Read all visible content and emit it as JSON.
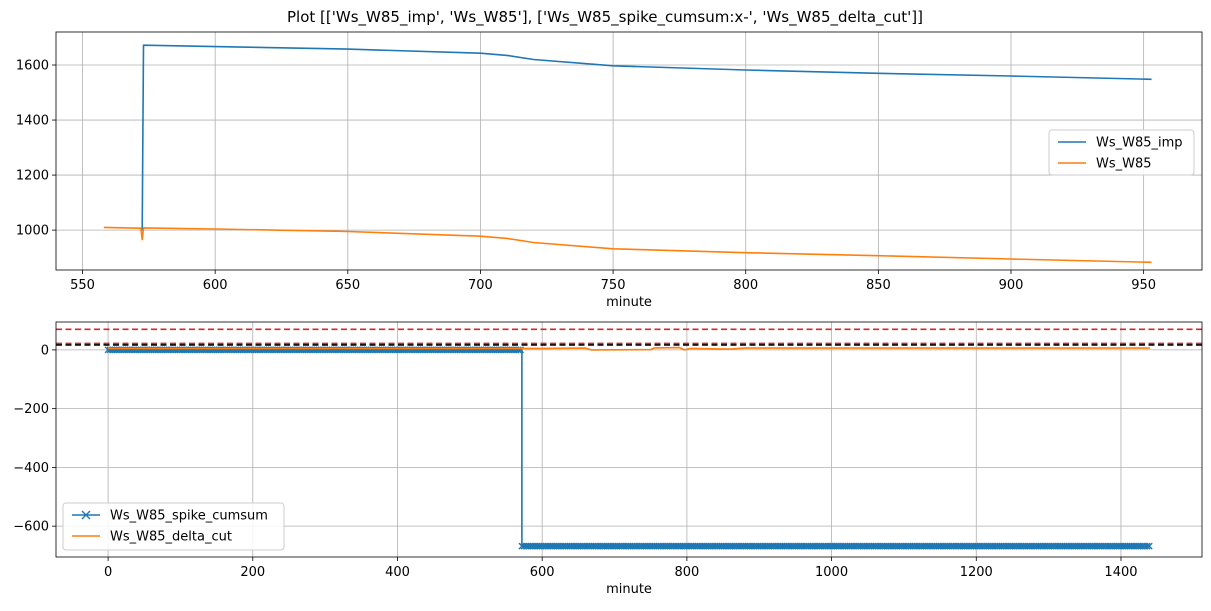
{
  "figure": {
    "title": "Plot [['Ws_W85_imp', 'Ws_W85'], ['Ws_W85_spike_cumsum:x-', 'Ws_W85_delta_cut']]"
  },
  "chart_data": [
    {
      "type": "line",
      "xlabel": "minute",
      "ylabel": "",
      "xlim": [
        540,
        972
      ],
      "ylim": [
        855,
        1720
      ],
      "xticks": [
        550,
        600,
        650,
        700,
        750,
        800,
        850,
        900,
        950
      ],
      "yticks": [
        1000,
        1200,
        1400,
        1600
      ],
      "grid": true,
      "legend_position": "center-right",
      "series": [
        {
          "name": "Ws_W85_imp",
          "color": "#1f77b4",
          "marker": "none",
          "points": [
            [
              572.5,
              1000
            ],
            [
              573,
              1672
            ],
            [
              600,
              1667
            ],
            [
              650,
              1658
            ],
            [
              700,
              1643
            ],
            [
              710,
              1635
            ],
            [
              720,
              1620
            ],
            [
              750,
              1597
            ],
            [
              800,
              1582
            ],
            [
              850,
              1570
            ],
            [
              900,
              1560
            ],
            [
              953,
              1548
            ]
          ]
        },
        {
          "name": "Ws_W85",
          "color": "#ff7f0e",
          "marker": "none",
          "points": [
            [
              558,
              1010
            ],
            [
              572,
              1007
            ],
            [
              572.5,
              965
            ],
            [
              573,
              1008
            ],
            [
              600,
              1004
            ],
            [
              650,
              995
            ],
            [
              700,
              978
            ],
            [
              710,
              970
            ],
            [
              720,
              955
            ],
            [
              750,
              932
            ],
            [
              800,
              918
            ],
            [
              850,
              907
            ],
            [
              900,
              895
            ],
            [
              953,
              883
            ]
          ]
        }
      ]
    },
    {
      "type": "line",
      "xlabel": "minute",
      "ylabel": "",
      "xlim": [
        -72,
        1512
      ],
      "ylim": [
        -705,
        95
      ],
      "xticks": [
        0,
        200,
        400,
        600,
        800,
        1000,
        1200,
        1400
      ],
      "yticks": [
        -600,
        -400,
        -200,
        0
      ],
      "grid": true,
      "legend_position": "lower-left",
      "hlines": [
        {
          "y": 70,
          "color": "#d62728",
          "style": "dashed"
        },
        {
          "y": 22,
          "color": "#d62728",
          "style": "dashed"
        },
        {
          "y": 17,
          "color": "#000000",
          "style": "dashed"
        }
      ],
      "series": [
        {
          "name": "Ws_W85_spike_cumsum",
          "color": "#1f77b4",
          "marker": "x",
          "points": [
            [
              0,
              0
            ],
            [
              572,
              0
            ],
            [
              572,
              -668
            ],
            [
              1440,
              -668
            ]
          ]
        },
        {
          "name": "Ws_W85_delta_cut",
          "color": "#ff7f0e",
          "marker": "none",
          "points": [
            [
              0,
              5
            ],
            [
              600,
              5
            ],
            [
              660,
              6
            ],
            [
              668,
              0
            ],
            [
              750,
              1
            ],
            [
              755,
              7
            ],
            [
              790,
              8
            ],
            [
              797,
              0
            ],
            [
              805,
              5
            ],
            [
              860,
              3
            ],
            [
              880,
              6
            ],
            [
              1440,
              6
            ]
          ]
        }
      ]
    }
  ]
}
